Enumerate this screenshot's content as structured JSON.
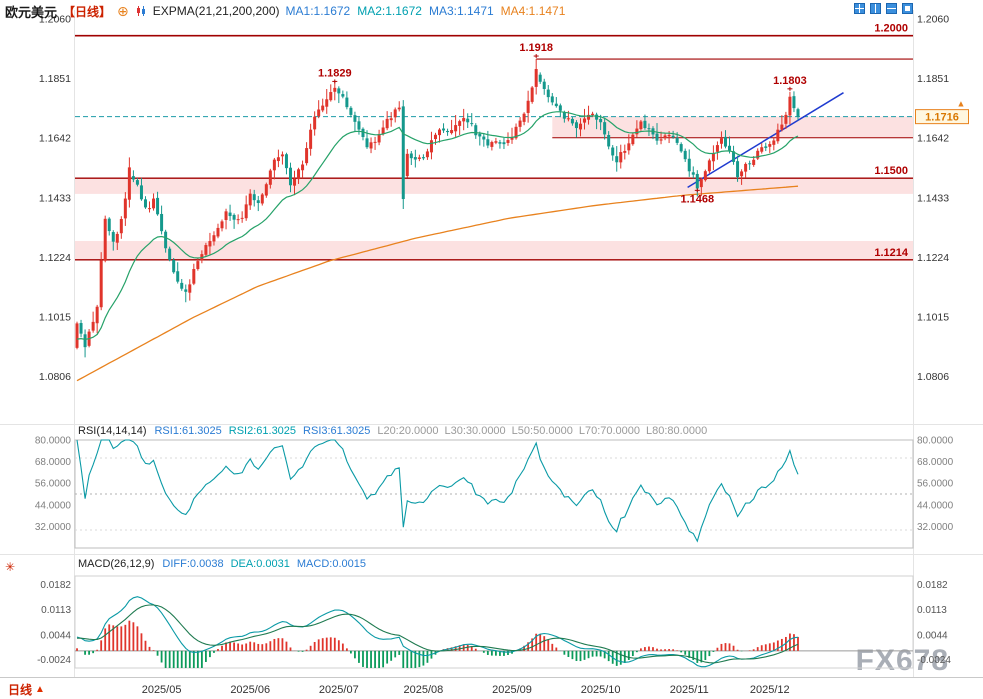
{
  "header": {
    "symbol": "欧元美元",
    "timeframe_tag": "【日线】",
    "indicator": "EXPMA(21,21,200,200)",
    "ma_values": [
      {
        "label": "MA1:1.1672",
        "color": "#2b7cd3"
      },
      {
        "label": "MA2:1.1672",
        "color": "#00a0b0"
      },
      {
        "label": "MA3:1.1471",
        "color": "#2b7cd3"
      },
      {
        "label": "MA4:1.1471",
        "color": "#e8821e"
      }
    ]
  },
  "rsi_header": {
    "name": "RSI(14,14,14)",
    "values": [
      {
        "label": "RSI1:61.3025",
        "color": "#2b7cd3"
      },
      {
        "label": "RSI2:61.3025",
        "color": "#00a0b0"
      },
      {
        "label": "RSI3:61.3025",
        "color": "#2b7cd3"
      }
    ],
    "levels": [
      "L20:20.0000",
      "L30:30.0000",
      "L50:50.0000",
      "L70:70.0000",
      "L80:80.0000"
    ]
  },
  "macd_header": {
    "name": "MACD(26,12,9)",
    "values": [
      {
        "label": "DIFF:0.0038",
        "color": "#2b7cd3"
      },
      {
        "label": "DEA:0.0031",
        "color": "#00a0b0"
      },
      {
        "label": "MACD:0.0015",
        "color": "#2b7cd3"
      }
    ]
  },
  "footer": {
    "timeframe": "日线",
    "arrow": "▲"
  },
  "watermark": "FX678",
  "chart_data": {
    "type": "candlestick",
    "instrument": "欧元美元",
    "timeframe": "日线",
    "n_candles": 180,
    "y_axis_price": {
      "ticks": [
        1.206,
        1.1851,
        1.1642,
        1.1433,
        1.1224,
        1.1015,
        1.0806
      ],
      "min": 1.0645,
      "max": 1.209
    },
    "x_axis": {
      "months": [
        {
          "label": "2025/05",
          "i": 21
        },
        {
          "label": "2025/06",
          "i": 43
        },
        {
          "label": "2025/07",
          "i": 65
        },
        {
          "label": "2025/08",
          "i": 86
        },
        {
          "label": "2025/09",
          "i": 108
        },
        {
          "label": "2025/10",
          "i": 130
        },
        {
          "label": "2025/11",
          "i": 152
        },
        {
          "label": "2025/12",
          "i": 172
        }
      ]
    },
    "price_anchors": [
      [
        0,
        1.098
      ],
      [
        2,
        1.091
      ],
      [
        5,
        1.105
      ],
      [
        7,
        1.136
      ],
      [
        9,
        1.128
      ],
      [
        11,
        1.135
      ],
      [
        13,
        1.1512
      ],
      [
        15,
        1.148
      ],
      [
        17,
        1.139
      ],
      [
        19,
        1.142
      ],
      [
        21,
        1.131
      ],
      [
        23,
        1.122
      ],
      [
        25,
        1.113
      ],
      [
        27,
        1.109
      ],
      [
        29,
        1.117
      ],
      [
        31,
        1.124
      ],
      [
        33,
        1.128
      ],
      [
        35,
        1.133
      ],
      [
        37,
        1.139
      ],
      [
        39,
        1.135
      ],
      [
        41,
        1.137
      ],
      [
        43,
        1.144
      ],
      [
        45,
        1.142
      ],
      [
        47,
        1.148
      ],
      [
        49,
        1.156
      ],
      [
        51,
        1.158
      ],
      [
        53,
        1.148
      ],
      [
        55,
        1.152
      ],
      [
        57,
        1.16
      ],
      [
        59,
        1.172
      ],
      [
        61,
        1.176
      ],
      [
        64,
        1.1806
      ],
      [
        66,
        1.178
      ],
      [
        68,
        1.172
      ],
      [
        70,
        1.166
      ],
      [
        72,
        1.161
      ],
      [
        74,
        1.163
      ],
      [
        76,
        1.168
      ],
      [
        78,
        1.172
      ],
      [
        80,
        1.1745
      ],
      [
        81,
        1.15
      ],
      [
        82,
        1.159
      ],
      [
        84,
        1.157
      ],
      [
        86,
        1.1565
      ],
      [
        88,
        1.164
      ],
      [
        90,
        1.168
      ],
      [
        92,
        1.165
      ],
      [
        94,
        1.169
      ],
      [
        96,
        1.1705
      ],
      [
        98,
        1.168
      ],
      [
        100,
        1.164
      ],
      [
        102,
        1.1625
      ],
      [
        104,
        1.164
      ],
      [
        106,
        1.161
      ],
      [
        108,
        1.1655
      ],
      [
        110,
        1.171
      ],
      [
        112,
        1.176
      ],
      [
        114,
        1.187
      ],
      [
        116,
        1.181
      ],
      [
        118,
        1.177
      ],
      [
        120,
        1.174
      ],
      [
        122,
        1.17
      ],
      [
        124,
        1.1667
      ],
      [
        126,
        1.17
      ],
      [
        128,
        1.173
      ],
      [
        130,
        1.17
      ],
      [
        132,
        1.162
      ],
      [
        134,
        1.156
      ],
      [
        136,
        1.16
      ],
      [
        138,
        1.1655
      ],
      [
        140,
        1.169
      ],
      [
        142,
        1.166
      ],
      [
        144,
        1.1625
      ],
      [
        146,
        1.165
      ],
      [
        148,
        1.164
      ],
      [
        150,
        1.159
      ],
      [
        152,
        1.153
      ],
      [
        154,
        1.1475
      ],
      [
        156,
        1.152
      ],
      [
        158,
        1.159
      ],
      [
        160,
        1.1635
      ],
      [
        162,
        1.159
      ],
      [
        164,
        1.1516
      ],
      [
        166,
        1.154
      ],
      [
        168,
        1.1575
      ],
      [
        170,
        1.16
      ],
      [
        172,
        1.162
      ],
      [
        174,
        1.166
      ],
      [
        176,
        1.172
      ],
      [
        177,
        1.1775
      ],
      [
        178,
        1.175
      ],
      [
        179,
        1.1716
      ]
    ],
    "marks": [
      {
        "i": 13,
        "type": "high",
        "value": 1.1573
      },
      {
        "i": 27,
        "type": "low",
        "value": 1.1065
      },
      {
        "i": 64,
        "type": "high",
        "value": 1.1829,
        "label": "1.1829"
      },
      {
        "i": 81,
        "type": "low",
        "value": 1.1392
      },
      {
        "i": 114,
        "type": "high",
        "value": 1.1918,
        "label": "1.1918"
      },
      {
        "i": 154,
        "type": "low",
        "value": 1.1468,
        "label": "1.1468"
      },
      {
        "i": 177,
        "type": "high",
        "value": 1.1803,
        "label": "1.1803"
      }
    ],
    "levels": [
      {
        "value": 1.2,
        "label": "1.2000",
        "from_i": 0,
        "width": 1.6
      },
      {
        "value": 1.1918,
        "from_i": 114,
        "width": 1.2
      },
      {
        "value": 1.1642,
        "from_i": 118,
        "width": 1
      },
      {
        "value": 1.15,
        "label": "1.1500",
        "from_i": 0,
        "width": 1.4
      },
      {
        "value": 1.1214,
        "label": "1.1214",
        "from_i": 0,
        "width": 1.4
      }
    ],
    "zones": [
      {
        "top": 1.1716,
        "bottom": 1.1642,
        "from_i": 118
      },
      {
        "top": 1.15,
        "bottom": 1.1445,
        "from_i": 0
      },
      {
        "top": 1.128,
        "bottom": 1.1214,
        "from_i": 0
      }
    ],
    "current_price": {
      "value": 1.1716,
      "label": "1.1716"
    },
    "trend_line": {
      "x1_frac": 0.845,
      "y1": 1.1468,
      "x2_frac": 1.06,
      "y2": 1.18,
      "color": "#1f3bd0"
    },
    "expma": {
      "fast_period": 21,
      "fast_color": "#26a269",
      "slow_color": "#e8821e",
      "slow_anchors": [
        [
          0,
          1.079
        ],
        [
          0.08,
          1.09
        ],
        [
          0.16,
          1.101
        ],
        [
          0.25,
          1.112
        ],
        [
          0.35,
          1.121
        ],
        [
          0.47,
          1.129
        ],
        [
          0.6,
          1.136
        ],
        [
          0.72,
          1.1405
        ],
        [
          0.84,
          1.144
        ],
        [
          0.93,
          1.1458
        ],
        [
          1.0,
          1.1472
        ]
      ]
    },
    "rsi": {
      "period": 14,
      "color": "#0a9aa6",
      "range": [
        20,
        80
      ],
      "ticks": [
        80,
        68,
        56,
        44,
        32
      ]
    },
    "macd": {
      "fast": 12,
      "slow": 26,
      "signal": 9,
      "range": [
        -0.0047,
        0.0205
      ],
      "ticks": [
        0.0182,
        0.0113,
        0.0044,
        -0.0024
      ],
      "diff_color": "#0a9aa6",
      "dea_color": "#1f7a50"
    },
    "colors": {
      "up": "#e0342b",
      "down": "#14988c",
      "zone_fill": "rgba(242,105,105,0.20)",
      "level": "#a00000",
      "current_line": "#1d9ba8"
    }
  }
}
